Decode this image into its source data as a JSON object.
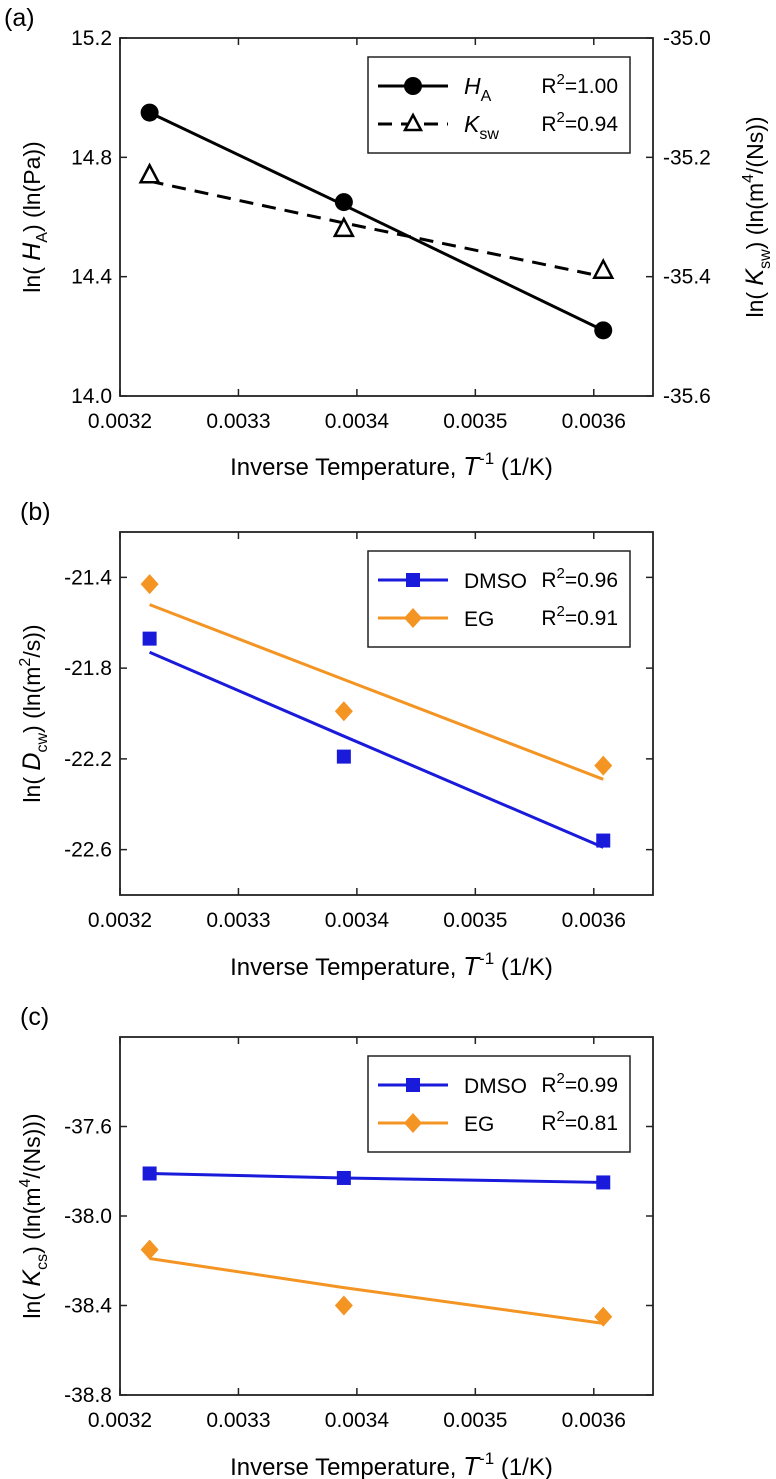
{
  "chart_data": [
    {
      "panel_label": "(a)",
      "type": "scatter",
      "xlabel": {
        "main": "Inverse Temperature,",
        "var": "T",
        "sup": "-1",
        "unit": "(1/K)"
      },
      "ylabel_left": {
        "pre": "ln(",
        "var": "H",
        "sub": "A",
        "post": ") (ln(Pa))"
      },
      "ylabel_right": {
        "pre": "ln(",
        "var": "K",
        "sub": "sw",
        "post": ") (ln(m",
        "sup": "4",
        "post2": "/(Ns))"
      },
      "xlim": [
        0.0032,
        0.00365
      ],
      "xticks": [
        0.0032,
        0.0033,
        0.0034,
        0.0035,
        0.0036
      ],
      "xtick_labels": [
        "0.0032",
        "0.0033",
        "0.0034",
        "0.0035",
        "0.0036"
      ],
      "ylim_left": [
        14.0,
        15.2
      ],
      "yticks_left": [
        14.0,
        14.4,
        14.8,
        15.2
      ],
      "ytick_labels_left": [
        "14.0",
        "14.4",
        "14.8",
        "15.2"
      ],
      "ylim_right": [
        -35.6,
        -35.0
      ],
      "yticks_right": [
        -35.6,
        -35.4,
        -35.2,
        -35.0
      ],
      "ytick_labels_right": [
        "-35.6",
        "-35.4",
        "-35.2",
        "-35.0"
      ],
      "x": [
        0.003225,
        0.003389,
        0.003608
      ],
      "series": [
        {
          "name_var": "H",
          "name_sub": "A",
          "r2": "R²=1.00",
          "axis": "left",
          "marker": "circle",
          "line": "solid",
          "color": "#000000",
          "values": [
            14.95,
            14.65,
            14.22
          ],
          "fit": [
            14.95,
            14.64,
            14.22
          ]
        },
        {
          "name_var": "K",
          "name_sub": "sw",
          "r2": "R²=0.94",
          "axis": "right",
          "marker": "triangle",
          "line": "dashed",
          "color": "#000000",
          "values": [
            -35.23,
            -35.32,
            -35.39
          ],
          "fit": [
            -35.24,
            -35.31,
            -35.4
          ]
        }
      ],
      "legend_position": "top-right"
    },
    {
      "panel_label": "(b)",
      "type": "scatter",
      "xlabel": {
        "main": "Inverse Temperature,",
        "var": "T",
        "sup": "-1",
        "unit": "(1/K)"
      },
      "ylabel_left": {
        "pre": "ln(",
        "var": "D",
        "sub": "cw",
        "post": ") (ln(m",
        "sup": "2",
        "post2": "/s))"
      },
      "xlim": [
        0.0032,
        0.00365
      ],
      "xticks": [
        0.0032,
        0.0033,
        0.0034,
        0.0035,
        0.0036
      ],
      "xtick_labels": [
        "0.0032",
        "0.0033",
        "0.0034",
        "0.0035",
        "0.0036"
      ],
      "ylim_left": [
        -22.8,
        -21.2
      ],
      "yticks_left": [
        -22.6,
        -22.2,
        -21.8,
        -21.4
      ],
      "ytick_labels_left": [
        "-22.6",
        "-22.2",
        "-21.8",
        "-21.4"
      ],
      "x": [
        0.003225,
        0.003389,
        0.003608
      ],
      "series": [
        {
          "name": "DMSO",
          "r2": "R²=0.96",
          "axis": "left",
          "marker": "square",
          "line": "solid",
          "color": "#1a1adb",
          "values": [
            -21.67,
            -22.19,
            -22.56
          ],
          "fit": [
            -21.73,
            -22.1,
            -22.59
          ]
        },
        {
          "name": "EG",
          "r2": "R²=0.91",
          "axis": "left",
          "marker": "diamond",
          "line": "solid",
          "color": "#f39423",
          "values": [
            -21.43,
            -21.99,
            -22.23
          ],
          "fit": [
            -21.52,
            -21.85,
            -22.29
          ]
        }
      ],
      "legend_position": "top-right"
    },
    {
      "panel_label": "(c)",
      "type": "scatter",
      "xlabel": {
        "main": "Inverse Temperature,",
        "var": "T",
        "sup": "-1",
        "unit": "(1/K)"
      },
      "ylabel_left": {
        "pre": "ln(",
        "var": "K",
        "sub": "cs",
        "post": ") (ln(m",
        "sup": "4",
        "post2": "/(Ns)))"
      },
      "xlim": [
        0.0032,
        0.00365
      ],
      "xticks": [
        0.0032,
        0.0033,
        0.0034,
        0.0035,
        0.0036
      ],
      "xtick_labels": [
        "0.0032",
        "0.0033",
        "0.0034",
        "0.0035",
        "0.0036"
      ],
      "ylim_left": [
        -38.8,
        -37.2
      ],
      "yticks_left": [
        -38.8,
        -38.4,
        -38.0,
        -37.6
      ],
      "ytick_labels_left": [
        "-38.8",
        "-38.4",
        "-38.0",
        "-37.6"
      ],
      "x": [
        0.003225,
        0.003389,
        0.003608
      ],
      "series": [
        {
          "name": "DMSO",
          "r2": "R²=0.99",
          "axis": "left",
          "marker": "square",
          "line": "solid",
          "color": "#1a1adb",
          "values": [
            -37.81,
            -37.83,
            -37.85
          ],
          "fit": [
            -37.81,
            -37.83,
            -37.85
          ]
        },
        {
          "name": "EG",
          "r2": "R²=0.81",
          "axis": "left",
          "marker": "diamond",
          "line": "solid",
          "color": "#f39423",
          "values": [
            -38.15,
            -38.4,
            -38.45
          ],
          "fit": [
            -38.19,
            -38.32,
            -38.48
          ]
        }
      ],
      "legend_position": "top-right"
    }
  ]
}
